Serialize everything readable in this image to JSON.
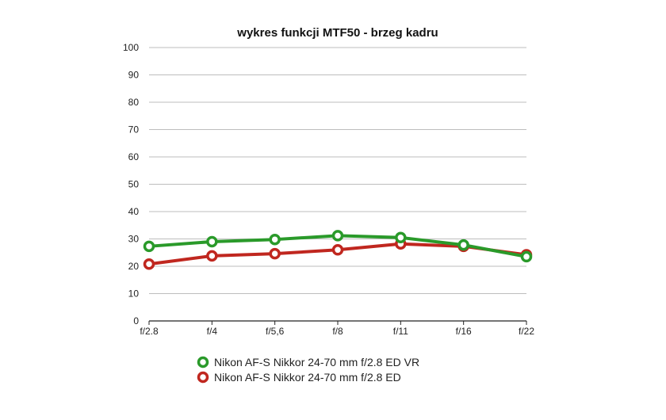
{
  "chart_data": {
    "type": "line",
    "title": "wykres funkcji MTF50 - brzeg kadru",
    "xlabel": "",
    "ylabel": "",
    "categories": [
      "f/2.8",
      "f/4",
      "f/5,6",
      "f/8",
      "f/11",
      "f/16",
      "f/22"
    ],
    "ylim": [
      0,
      100
    ],
    "yticks": [
      0,
      10,
      20,
      30,
      40,
      50,
      60,
      70,
      80,
      90,
      100
    ],
    "grid": true,
    "legend_position": "bottom",
    "series": [
      {
        "name": "Nikon AF-S Nikkor 24-70 mm f/2.8 ED VR",
        "color": "#2a9a2a",
        "values": [
          27.3,
          29.0,
          29.8,
          31.2,
          30.5,
          27.8,
          23.5
        ]
      },
      {
        "name": "Nikon AF-S Nikkor 24-70 mm f/2.8 ED",
        "color": "#c0271f",
        "values": [
          20.8,
          23.8,
          24.6,
          26.0,
          28.2,
          27.3,
          24.2
        ]
      }
    ]
  }
}
